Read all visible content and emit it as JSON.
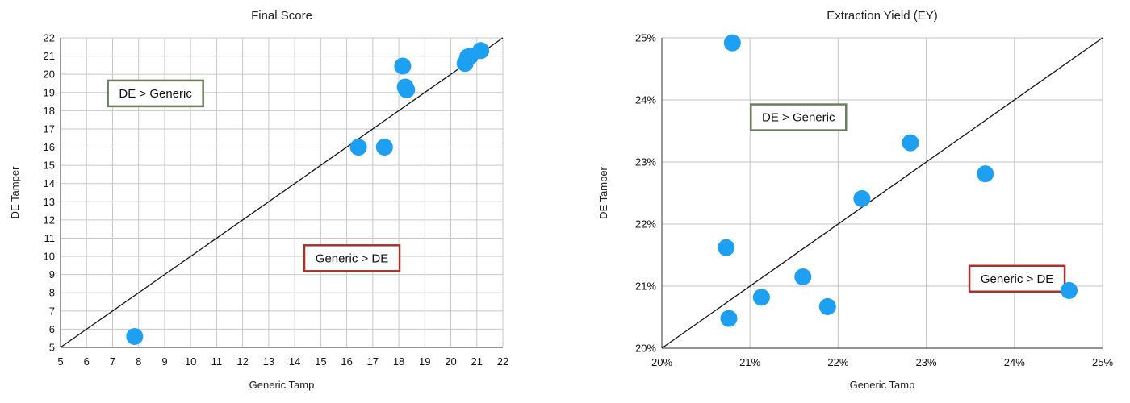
{
  "chart_data": [
    {
      "type": "scatter",
      "title": "Final Score",
      "xlabel": "Generic Tamp",
      "ylabel": "DE Tamper",
      "xlim": [
        5,
        22
      ],
      "ylim": [
        5,
        22
      ],
      "xticks": [
        "5",
        "6",
        "7",
        "8",
        "9",
        "10",
        "11",
        "12",
        "13",
        "14",
        "15",
        "16",
        "17",
        "18",
        "19",
        "20",
        "21",
        "22"
      ],
      "yticks": [
        "5",
        "6",
        "7",
        "8",
        "9",
        "10",
        "11",
        "12",
        "13",
        "14",
        "15",
        "16",
        "17",
        "18",
        "19",
        "20",
        "21",
        "22"
      ],
      "grid": true,
      "reference_line": "y = x",
      "point_color": "#1d9ff2",
      "x": [
        7.85,
        16.45,
        17.45,
        18.15,
        18.25,
        18.3,
        20.55,
        20.65,
        20.75,
        21.15
      ],
      "y": [
        5.6,
        16.0,
        16.0,
        20.45,
        19.3,
        19.15,
        20.6,
        20.95,
        21.0,
        21.3
      ],
      "annotations": [
        {
          "text": "DE > Generic",
          "x": 8.65,
          "y": 18.95,
          "border": "#6b7f5f"
        },
        {
          "text": "Generic > DE",
          "x": 16.2,
          "y": 9.9,
          "border": "#a8322b"
        }
      ]
    },
    {
      "type": "scatter",
      "title": "Extraction Yield (EY)",
      "xlabel": "Generic Tamp",
      "ylabel": "DE Tamper",
      "xlim": [
        0.2,
        0.25
      ],
      "ylim": [
        0.2,
        0.25
      ],
      "xticks": [
        "20%",
        "21%",
        "22%",
        "23%",
        "24%",
        "25%"
      ],
      "yticks": [
        "20%",
        "21%",
        "22%",
        "23%",
        "24%",
        "25%"
      ],
      "grid": true,
      "reference_line": "y = x",
      "point_color": "#1d9ff2",
      "x": [
        0.208,
        0.2073,
        0.2076,
        0.2113,
        0.216,
        0.2188,
        0.2227,
        0.2282,
        0.2367,
        0.2462
      ],
      "y": [
        0.2492,
        0.2162,
        0.2048,
        0.2082,
        0.2115,
        0.2067,
        0.2241,
        0.2331,
        0.2281,
        0.2093
      ],
      "annotations": [
        {
          "text": "DE > Generic",
          "x": 0.2155,
          "y": 0.2372,
          "border": "#6b7f5f"
        },
        {
          "text": "Generic > DE",
          "x": 0.2403,
          "y": 0.2112,
          "border": "#a8322b"
        }
      ]
    }
  ]
}
